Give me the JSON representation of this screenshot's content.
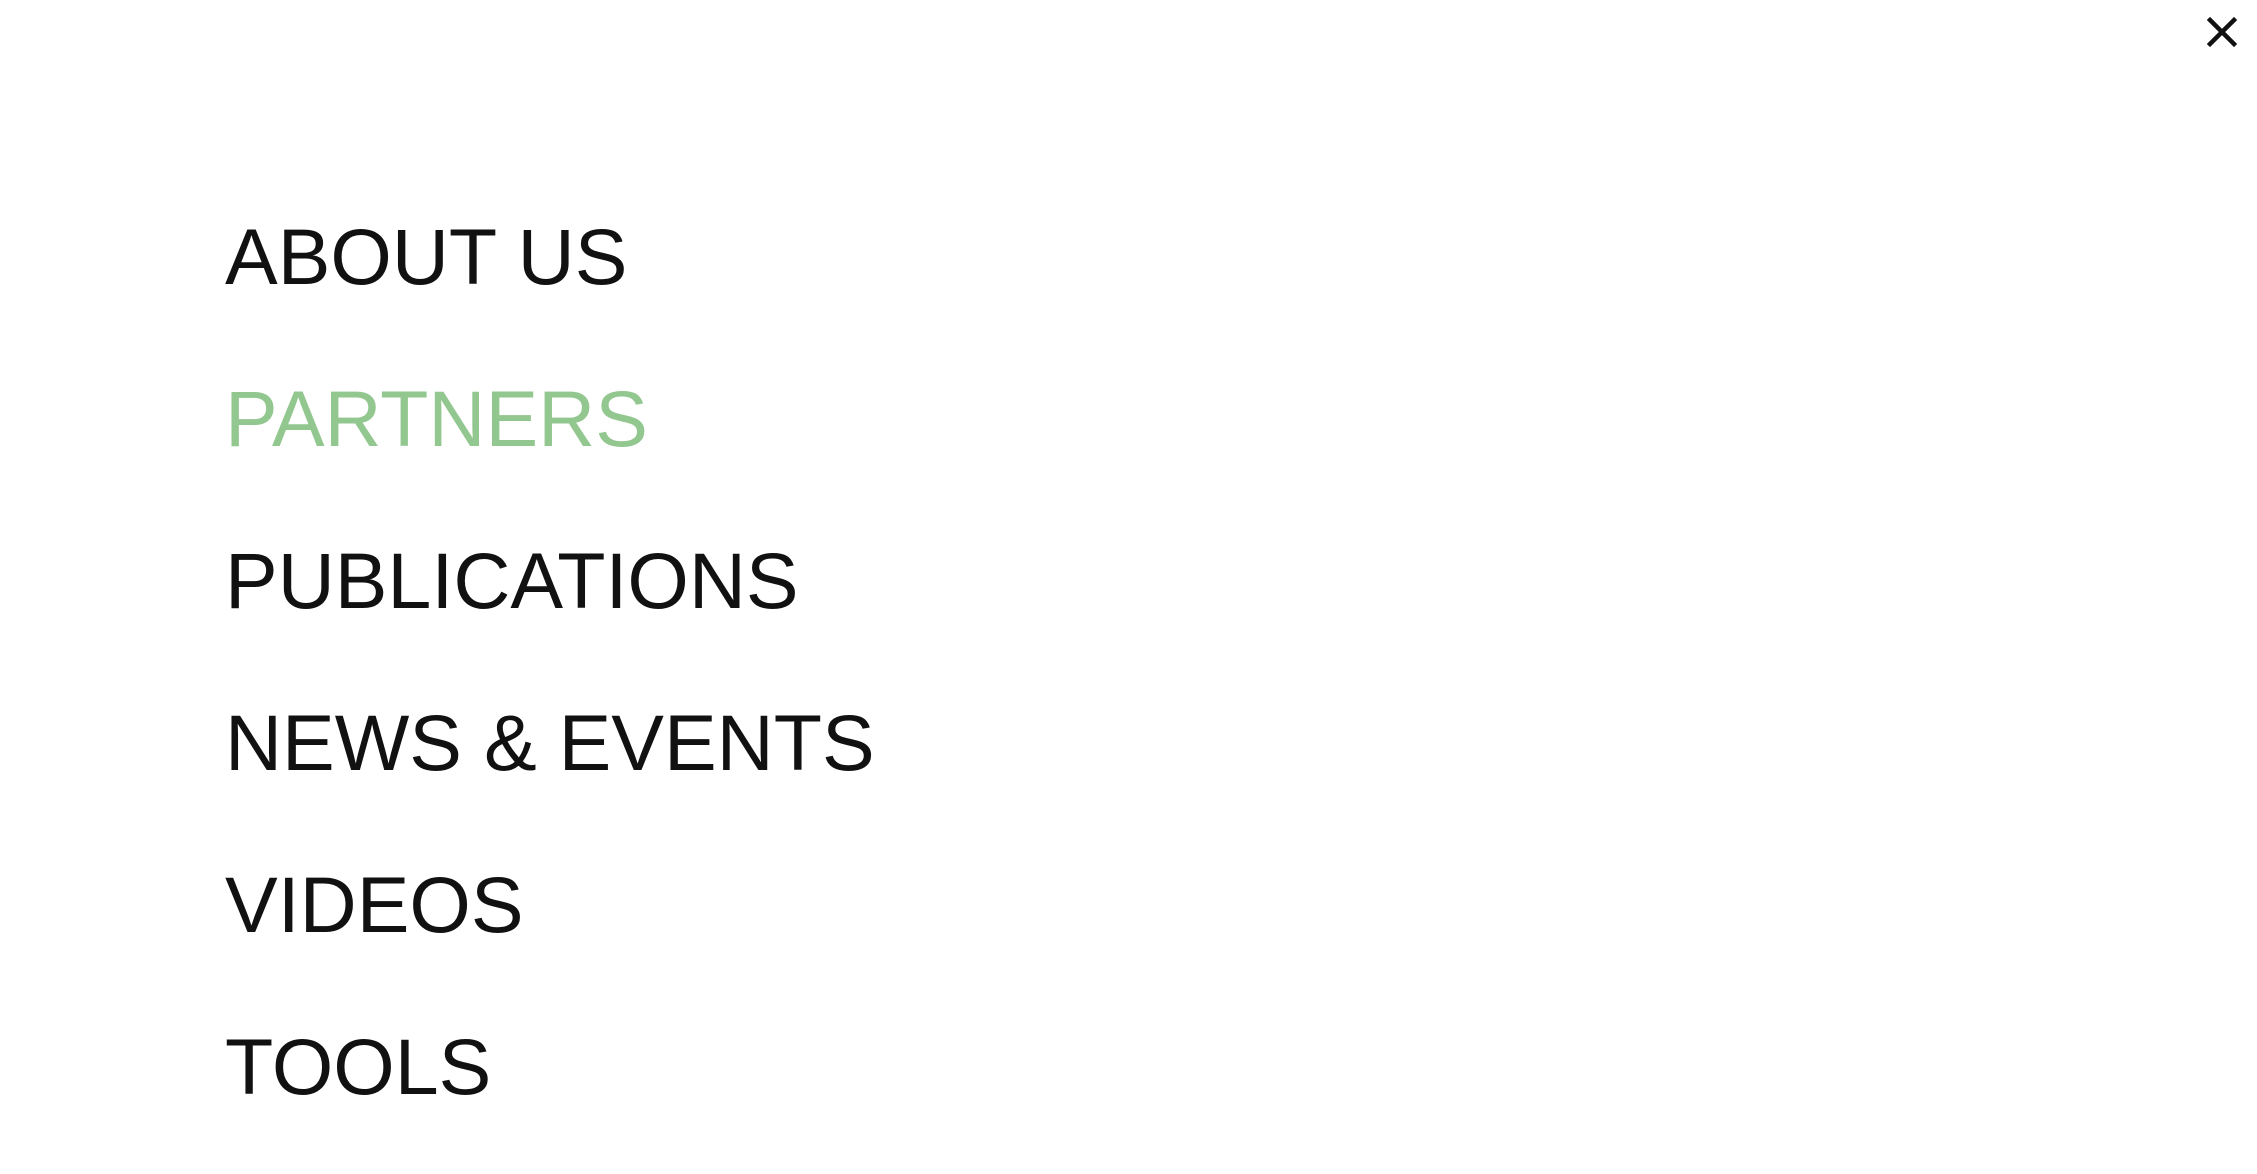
{
  "header": {
    "close_icon": "close-icon"
  },
  "menu": {
    "items": [
      {
        "label": "ABOUT US",
        "active": false
      },
      {
        "label": "PARTNERS",
        "active": true
      },
      {
        "label": "PUBLICATIONS",
        "active": false
      },
      {
        "label": "NEWS & EVENTS",
        "active": false
      },
      {
        "label": "VIDEOS",
        "active": false
      },
      {
        "label": "TOOLS",
        "active": false
      }
    ]
  },
  "colors": {
    "text": "#111111",
    "active": "#93c790",
    "background": "#ffffff"
  }
}
